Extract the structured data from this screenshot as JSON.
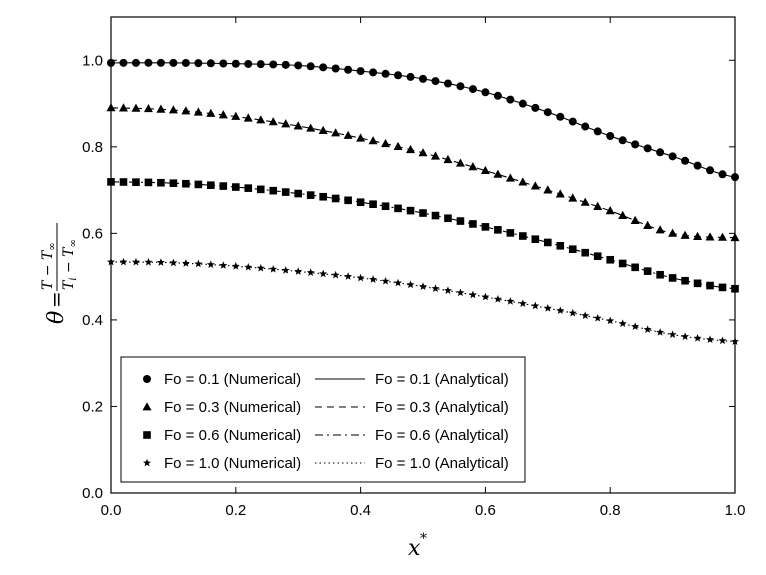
{
  "chart_data": {
    "type": "line",
    "xlabel": "x*",
    "ylabel": "θ = (T − T∞)/(Ti − T∞)",
    "xlim": [
      0.0,
      1.0
    ],
    "ylim": [
      0.0,
      1.1
    ],
    "xticks": [
      "0.0",
      "0.2",
      "0.4",
      "0.6",
      "0.8",
      "1.0"
    ],
    "yticks": [
      "0.0",
      "0.2",
      "0.4",
      "0.6",
      "0.8",
      "1.0"
    ],
    "grid": false,
    "legend_position": "bottom-center",
    "series": [
      {
        "name": "Fo = 0.1 (Numerical)",
        "style": "markers",
        "marker": "circle",
        "fo": 0.1
      },
      {
        "name": "Fo = 0.3 (Numerical)",
        "style": "markers",
        "marker": "triangle",
        "fo": 0.3
      },
      {
        "name": "Fo = 0.6 (Numerical)",
        "style": "markers",
        "marker": "square",
        "fo": 0.6
      },
      {
        "name": "Fo = 1.0 (Numerical)",
        "style": "markers",
        "marker": "star",
        "fo": 1.0
      },
      {
        "name": "Fo = 0.1 (Analytical)",
        "style": "line",
        "dash": "solid",
        "fo": 0.1
      },
      {
        "name": "Fo = 0.3 (Analytical)",
        "style": "line",
        "dash": "dashed",
        "fo": 0.3
      },
      {
        "name": "Fo = 0.6 (Analytical)",
        "style": "line",
        "dash": "dashdot",
        "fo": 0.6
      },
      {
        "name": "Fo = 1.0 (Analytical)",
        "style": "line",
        "dash": "dotted",
        "fo": 1.0
      }
    ],
    "curves": {
      "x": [
        0.0,
        0.1,
        0.2,
        0.3,
        0.4,
        0.5,
        0.6,
        0.7,
        0.8,
        0.9,
        1.0
      ],
      "fo_0.1": [
        0.994,
        0.994,
        0.992,
        0.988,
        0.975,
        0.957,
        0.926,
        0.88,
        0.825,
        0.778,
        0.73
      ],
      "fo_0.3": [
        0.89,
        0.885,
        0.87,
        0.848,
        0.82,
        0.786,
        0.745,
        0.7,
        0.652,
        0.6,
        0.59
      ],
      "fo_0.6": [
        0.719,
        0.716,
        0.707,
        0.692,
        0.672,
        0.647,
        0.615,
        0.579,
        0.539,
        0.497,
        0.472
      ],
      "fo_1.0": [
        0.534,
        0.532,
        0.524,
        0.512,
        0.497,
        0.477,
        0.453,
        0.427,
        0.398,
        0.366,
        0.35
      ]
    }
  }
}
